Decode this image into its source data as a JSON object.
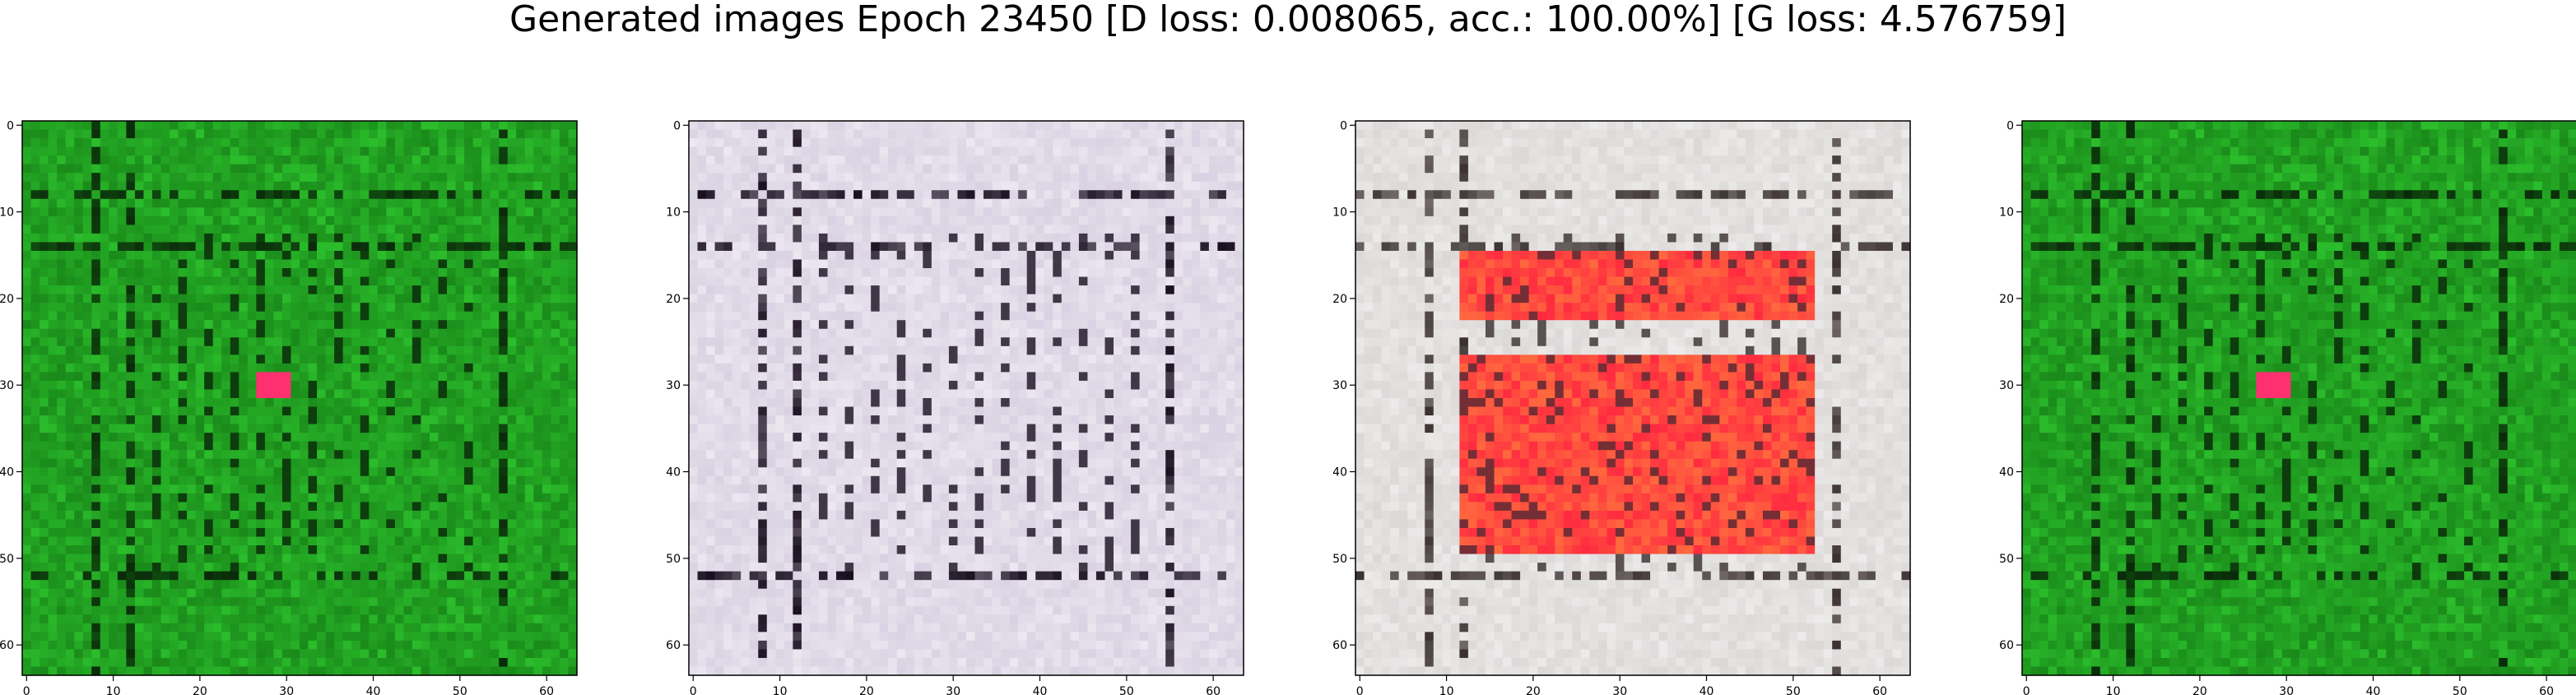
{
  "title": "Generated images Epoch 23450 [D loss: 0.008065, acc.: 100.00%] [G loss: 4.576759]",
  "chart_data": [
    {
      "type": "heatmap",
      "description_palette": "green",
      "xlim": [
        -0.5,
        63.5
      ],
      "ylim": [
        63.5,
        -0.5
      ],
      "xticks": [
        0,
        10,
        20,
        30,
        40,
        50,
        60
      ],
      "yticks": [
        0,
        10,
        20,
        30,
        40,
        50,
        60
      ],
      "grid": false,
      "colors": {
        "base": "#1a8a1a",
        "light": "#33d333",
        "dark": "#0a2a0a",
        "accent": "#ff3070"
      }
    },
    {
      "type": "heatmap",
      "xlim": [
        -0.5,
        63.5
      ],
      "ylim": [
        63.5,
        -0.5
      ],
      "xticks": [
        0,
        10,
        20,
        30,
        40,
        50,
        60
      ],
      "yticks": [
        0,
        10,
        20,
        30,
        40,
        50,
        60
      ],
      "grid": false,
      "colors": {
        "base": "#d9d2e2",
        "light": "#f4f0f6",
        "dark": "#1a1020",
        "accent": "#a060d0"
      }
    },
    {
      "type": "heatmap",
      "xlim": [
        -0.5,
        63.5
      ],
      "ylim": [
        63.5,
        -0.5
      ],
      "xticks": [
        0,
        10,
        20,
        30,
        40,
        50,
        60
      ],
      "yticks": [
        0,
        10,
        20,
        30,
        40,
        50,
        60
      ],
      "grid": false,
      "colors": {
        "base": "#dcd8d8",
        "light": "#f4f2f2",
        "dark": "#3a3030",
        "accent": "#ff2a40"
      }
    },
    {
      "type": "heatmap",
      "xlim": [
        -0.5,
        63.5
      ],
      "ylim": [
        63.5,
        -0.5
      ],
      "xticks": [
        0,
        10,
        20,
        30,
        40,
        50,
        60
      ],
      "yticks": [
        0,
        10,
        20,
        30,
        40,
        50,
        60
      ],
      "grid": false,
      "colors": {
        "base": "#1a8a1a",
        "light": "#33d333",
        "dark": "#0a2a0a",
        "accent": "#ff3070"
      }
    }
  ]
}
